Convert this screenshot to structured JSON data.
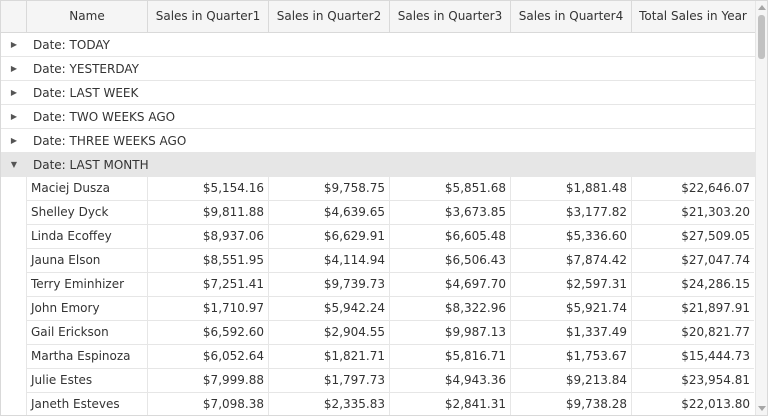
{
  "columns": {
    "name": "Name",
    "q1": "Sales in Quarter1",
    "q2": "Sales in Quarter2",
    "q3": "Sales in Quarter3",
    "q4": "Sales in Quarter4",
    "total": "Total Sales in Year"
  },
  "groups": [
    {
      "label": "Date: TODAY",
      "expanded": false
    },
    {
      "label": "Date: YESTERDAY",
      "expanded": false
    },
    {
      "label": "Date: LAST WEEK",
      "expanded": false
    },
    {
      "label": "Date: TWO WEEKS AGO",
      "expanded": false
    },
    {
      "label": "Date: THREE WEEKS AGO",
      "expanded": false
    },
    {
      "label": "Date: LAST MONTH",
      "expanded": true
    }
  ],
  "rows": [
    {
      "name": "Maciej Dusza",
      "q1": "$5,154.16",
      "q2": "$9,758.75",
      "q3": "$5,851.68",
      "q4": "$1,881.48",
      "total": "$22,646.07"
    },
    {
      "name": "Shelley Dyck",
      "q1": "$9,811.88",
      "q2": "$4,639.65",
      "q3": "$3,673.85",
      "q4": "$3,177.82",
      "total": "$21,303.20"
    },
    {
      "name": "Linda Ecoffey",
      "q1": "$8,937.06",
      "q2": "$6,629.91",
      "q3": "$6,605.48",
      "q4": "$5,336.60",
      "total": "$27,509.05"
    },
    {
      "name": "Jauna Elson",
      "q1": "$8,551.95",
      "q2": "$4,114.94",
      "q3": "$6,506.43",
      "q4": "$7,874.42",
      "total": "$27,047.74"
    },
    {
      "name": "Terry Eminhizer",
      "q1": "$7,251.41",
      "q2": "$9,739.73",
      "q3": "$4,697.70",
      "q4": "$2,597.31",
      "total": "$24,286.15"
    },
    {
      "name": "John Emory",
      "q1": "$1,710.97",
      "q2": "$5,942.24",
      "q3": "$8,322.96",
      "q4": "$5,921.74",
      "total": "$21,897.91"
    },
    {
      "name": "Gail Erickson",
      "q1": "$6,592.60",
      "q2": "$2,904.55",
      "q3": "$9,987.13",
      "q4": "$1,337.49",
      "total": "$20,821.77"
    },
    {
      "name": "Martha Espinoza",
      "q1": "$6,052.64",
      "q2": "$1,821.71",
      "q3": "$5,816.71",
      "q4": "$1,753.67",
      "total": "$15,444.73"
    },
    {
      "name": "Julie Estes",
      "q1": "$7,999.88",
      "q2": "$1,797.73",
      "q3": "$4,943.36",
      "q4": "$9,213.84",
      "total": "$23,954.81"
    },
    {
      "name": "Janeth Esteves",
      "q1": "$7,098.38",
      "q2": "$2,335.83",
      "q3": "$2,841.31",
      "q4": "$9,738.28",
      "total": "$22,013.80"
    }
  ],
  "icons": {
    "collapsed": "triangle-right-icon",
    "expanded": "triangle-down-icon"
  }
}
